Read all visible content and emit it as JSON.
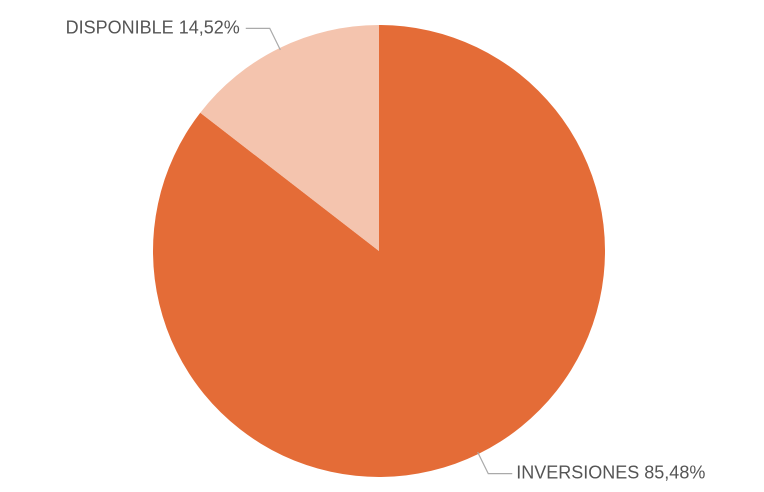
{
  "chart_data": {
    "type": "pie",
    "categories": [
      "INVERSIONES",
      "DISPONIBLE"
    ],
    "values": [
      85.48,
      14.52
    ],
    "value_labels": [
      "85,48%",
      "14,52%"
    ],
    "colors": [
      "#e46c37",
      "#f4c4ae"
    ]
  }
}
